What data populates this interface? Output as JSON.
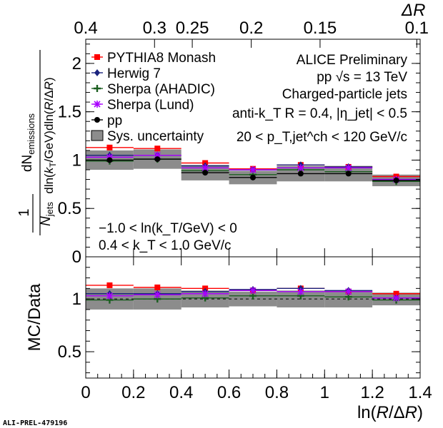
{
  "chart_data": [
    {
      "type": "scatter",
      "panel": "top",
      "x_bin_edges": [
        0,
        0.2,
        0.4,
        0.6,
        0.8,
        1.0,
        1.2,
        1.4
      ],
      "x": [
        0.1,
        0.3,
        0.5,
        0.7,
        0.9,
        1.1,
        1.3
      ],
      "xlabel": "ln(R/ΔR)",
      "ylabel_top": "dN_emissions / dln(k_T/GeV)dln(R/ΔR)",
      "ylabel_bottom": "1/N_jets",
      "ylim": [
        0,
        2.25
      ],
      "yticks": [
        0,
        0.5,
        1,
        1.5,
        2
      ],
      "xticks": [
        0,
        0.2,
        0.4,
        0.6,
        0.8,
        1,
        1.2,
        1.4
      ],
      "top_axis": {
        "title": "ΔR",
        "ticks": [
          "0.4",
          "0.3",
          "0.25",
          "0.2",
          "0.15",
          "0.1"
        ],
        "tick_x": [
          0.0,
          0.288,
          0.446,
          0.693,
          0.981,
          1.386
        ]
      },
      "series": [
        {
          "name": "PYTHIA8 Monash",
          "color": "#ff0000",
          "marker": "square",
          "values": [
            1.13,
            1.12,
            0.97,
            0.91,
            0.95,
            0.93,
            0.83
          ]
        },
        {
          "name": "Herwig 7",
          "color": "#1a237e",
          "marker": "diamond",
          "values": [
            1.05,
            1.05,
            0.94,
            0.9,
            0.95,
            0.93,
            0.8
          ]
        },
        {
          "name": "Sherpa (AHADIC)",
          "color": "#1b5e20",
          "marker": "cross",
          "values": [
            0.99,
            1.01,
            0.89,
            0.85,
            0.9,
            0.88,
            0.78
          ]
        },
        {
          "name": "Sherpa (Lund)",
          "color": "#aa00ff",
          "marker": "star",
          "values": [
            1.03,
            1.05,
            0.92,
            0.9,
            0.92,
            0.92,
            0.8
          ]
        },
        {
          "name": "pp",
          "color": "#000000",
          "marker": "circle",
          "values": [
            1.0,
            1.01,
            0.87,
            0.82,
            0.86,
            0.86,
            0.79
          ],
          "sys_band": [
            0.1,
            0.1,
            0.08,
            0.07,
            0.08,
            0.08,
            0.06
          ]
        }
      ],
      "legend": [
        "PYTHIA8 Monash",
        "Herwig 7",
        "Sherpa (AHADIC)",
        "Sherpa (Lund)",
        "pp",
        "Sys. uncertainty"
      ],
      "annotations": {
        "l1": "ALICE Preliminary",
        "l2": "pp √s = 13 TeV",
        "l3": "Charged-particle jets",
        "l4": "anti-k_T R = 0.4, |η_jet| < 0.5",
        "l5": "20 < p_T,jet^ch < 120 GeV/c",
        "l6": "−1.0 < ln(k_T/GeV) < 0",
        "l7": "0.4 < k_T < 1.0 GeV/c"
      }
    },
    {
      "type": "scatter",
      "panel": "ratio",
      "ylabel": "MC/Data",
      "ylim": [
        0.25,
        1.4
      ],
      "yticks": [
        0.5,
        1
      ],
      "reference_line": 1.0,
      "series": [
        {
          "name": "PYTHIA8 Monash",
          "color": "#ff0000",
          "values": [
            1.13,
            1.11,
            1.1,
            1.08,
            1.1,
            1.07,
            1.05
          ]
        },
        {
          "name": "Herwig 7",
          "color": "#1a237e",
          "values": [
            1.05,
            1.05,
            1.07,
            1.09,
            1.1,
            1.08,
            1.01
          ]
        },
        {
          "name": "Sherpa (AHADIC)",
          "color": "#1b5e20",
          "values": [
            0.99,
            1.0,
            1.01,
            1.03,
            1.03,
            1.02,
            0.99
          ]
        },
        {
          "name": "Sherpa (Lund)",
          "color": "#aa00ff",
          "values": [
            1.03,
            1.04,
            1.05,
            1.08,
            1.07,
            1.07,
            1.01
          ]
        }
      ],
      "sys_band": [
        0.1,
        0.1,
        0.08,
        0.07,
        0.08,
        0.08,
        0.06
      ]
    }
  ],
  "footer_label": "ALI-PREL-479196"
}
